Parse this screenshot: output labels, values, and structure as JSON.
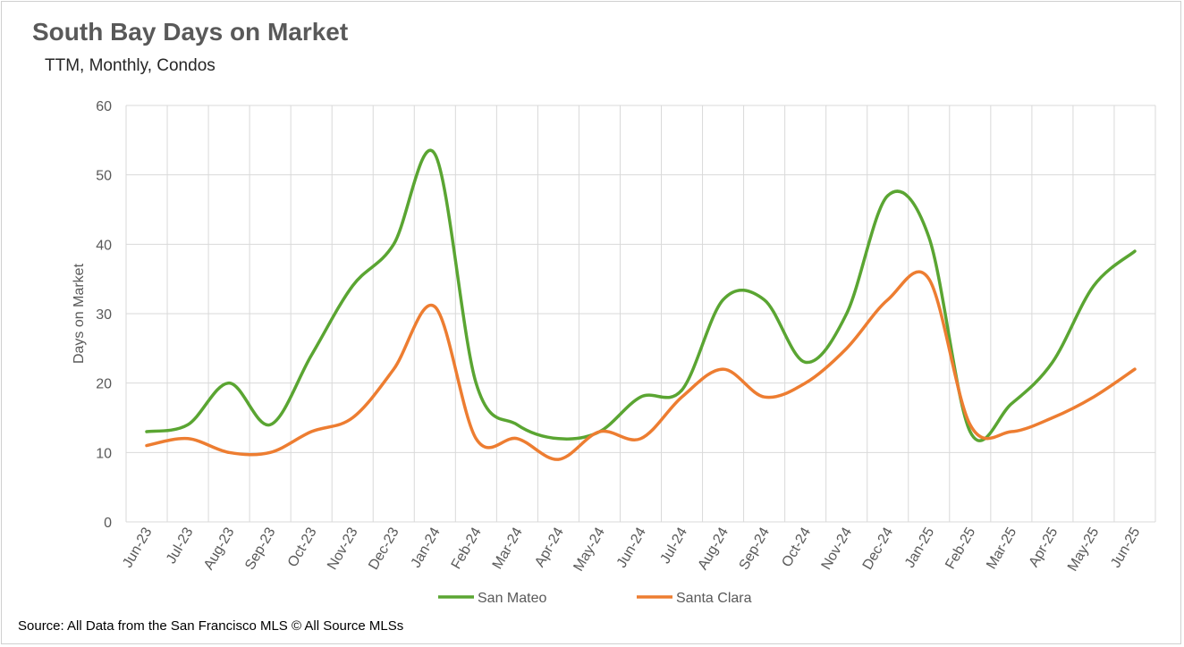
{
  "chart_data": {
    "type": "line",
    "title": "South Bay Days on Market",
    "subtitle": "TTM, Monthly, Condos",
    "ylabel": "Days on Market",
    "xlabel": "",
    "ylim": [
      0,
      60
    ],
    "yticks": [
      0,
      10,
      20,
      30,
      40,
      50,
      60
    ],
    "grid": true,
    "legend_position": "bottom",
    "categories": [
      "Jun-23",
      "Jul-23",
      "Aug-23",
      "Sep-23",
      "Oct-23",
      "Nov-23",
      "Dec-23",
      "Jan-24",
      "Feb-24",
      "Mar-24",
      "Apr-24",
      "May-24",
      "Jun-24",
      "Jul-24",
      "Aug-24",
      "Sep-24",
      "Oct-24",
      "Nov-24",
      "Dec-24",
      "Jan-25",
      "Feb-25",
      "Mar-25",
      "Apr-25",
      "May-25",
      "Jun-25"
    ],
    "series": [
      {
        "name": "San Mateo",
        "color": "#5aa532",
        "values": [
          13,
          14,
          20,
          14,
          24,
          34,
          40,
          53,
          20,
          14,
          12,
          13,
          18,
          19,
          32,
          32,
          23,
          30,
          47,
          41,
          13,
          17,
          23,
          34,
          39
        ]
      },
      {
        "name": "Santa Clara",
        "color": "#ed7d31",
        "values": [
          11,
          12,
          10,
          10,
          13,
          15,
          22,
          31,
          12,
          12,
          9,
          13,
          12,
          18,
          22,
          18,
          20,
          25,
          32,
          35,
          14,
          13,
          15,
          18,
          22
        ]
      }
    ]
  },
  "source": "Source: All Data from the San Francisco MLS © All Source MLSs"
}
